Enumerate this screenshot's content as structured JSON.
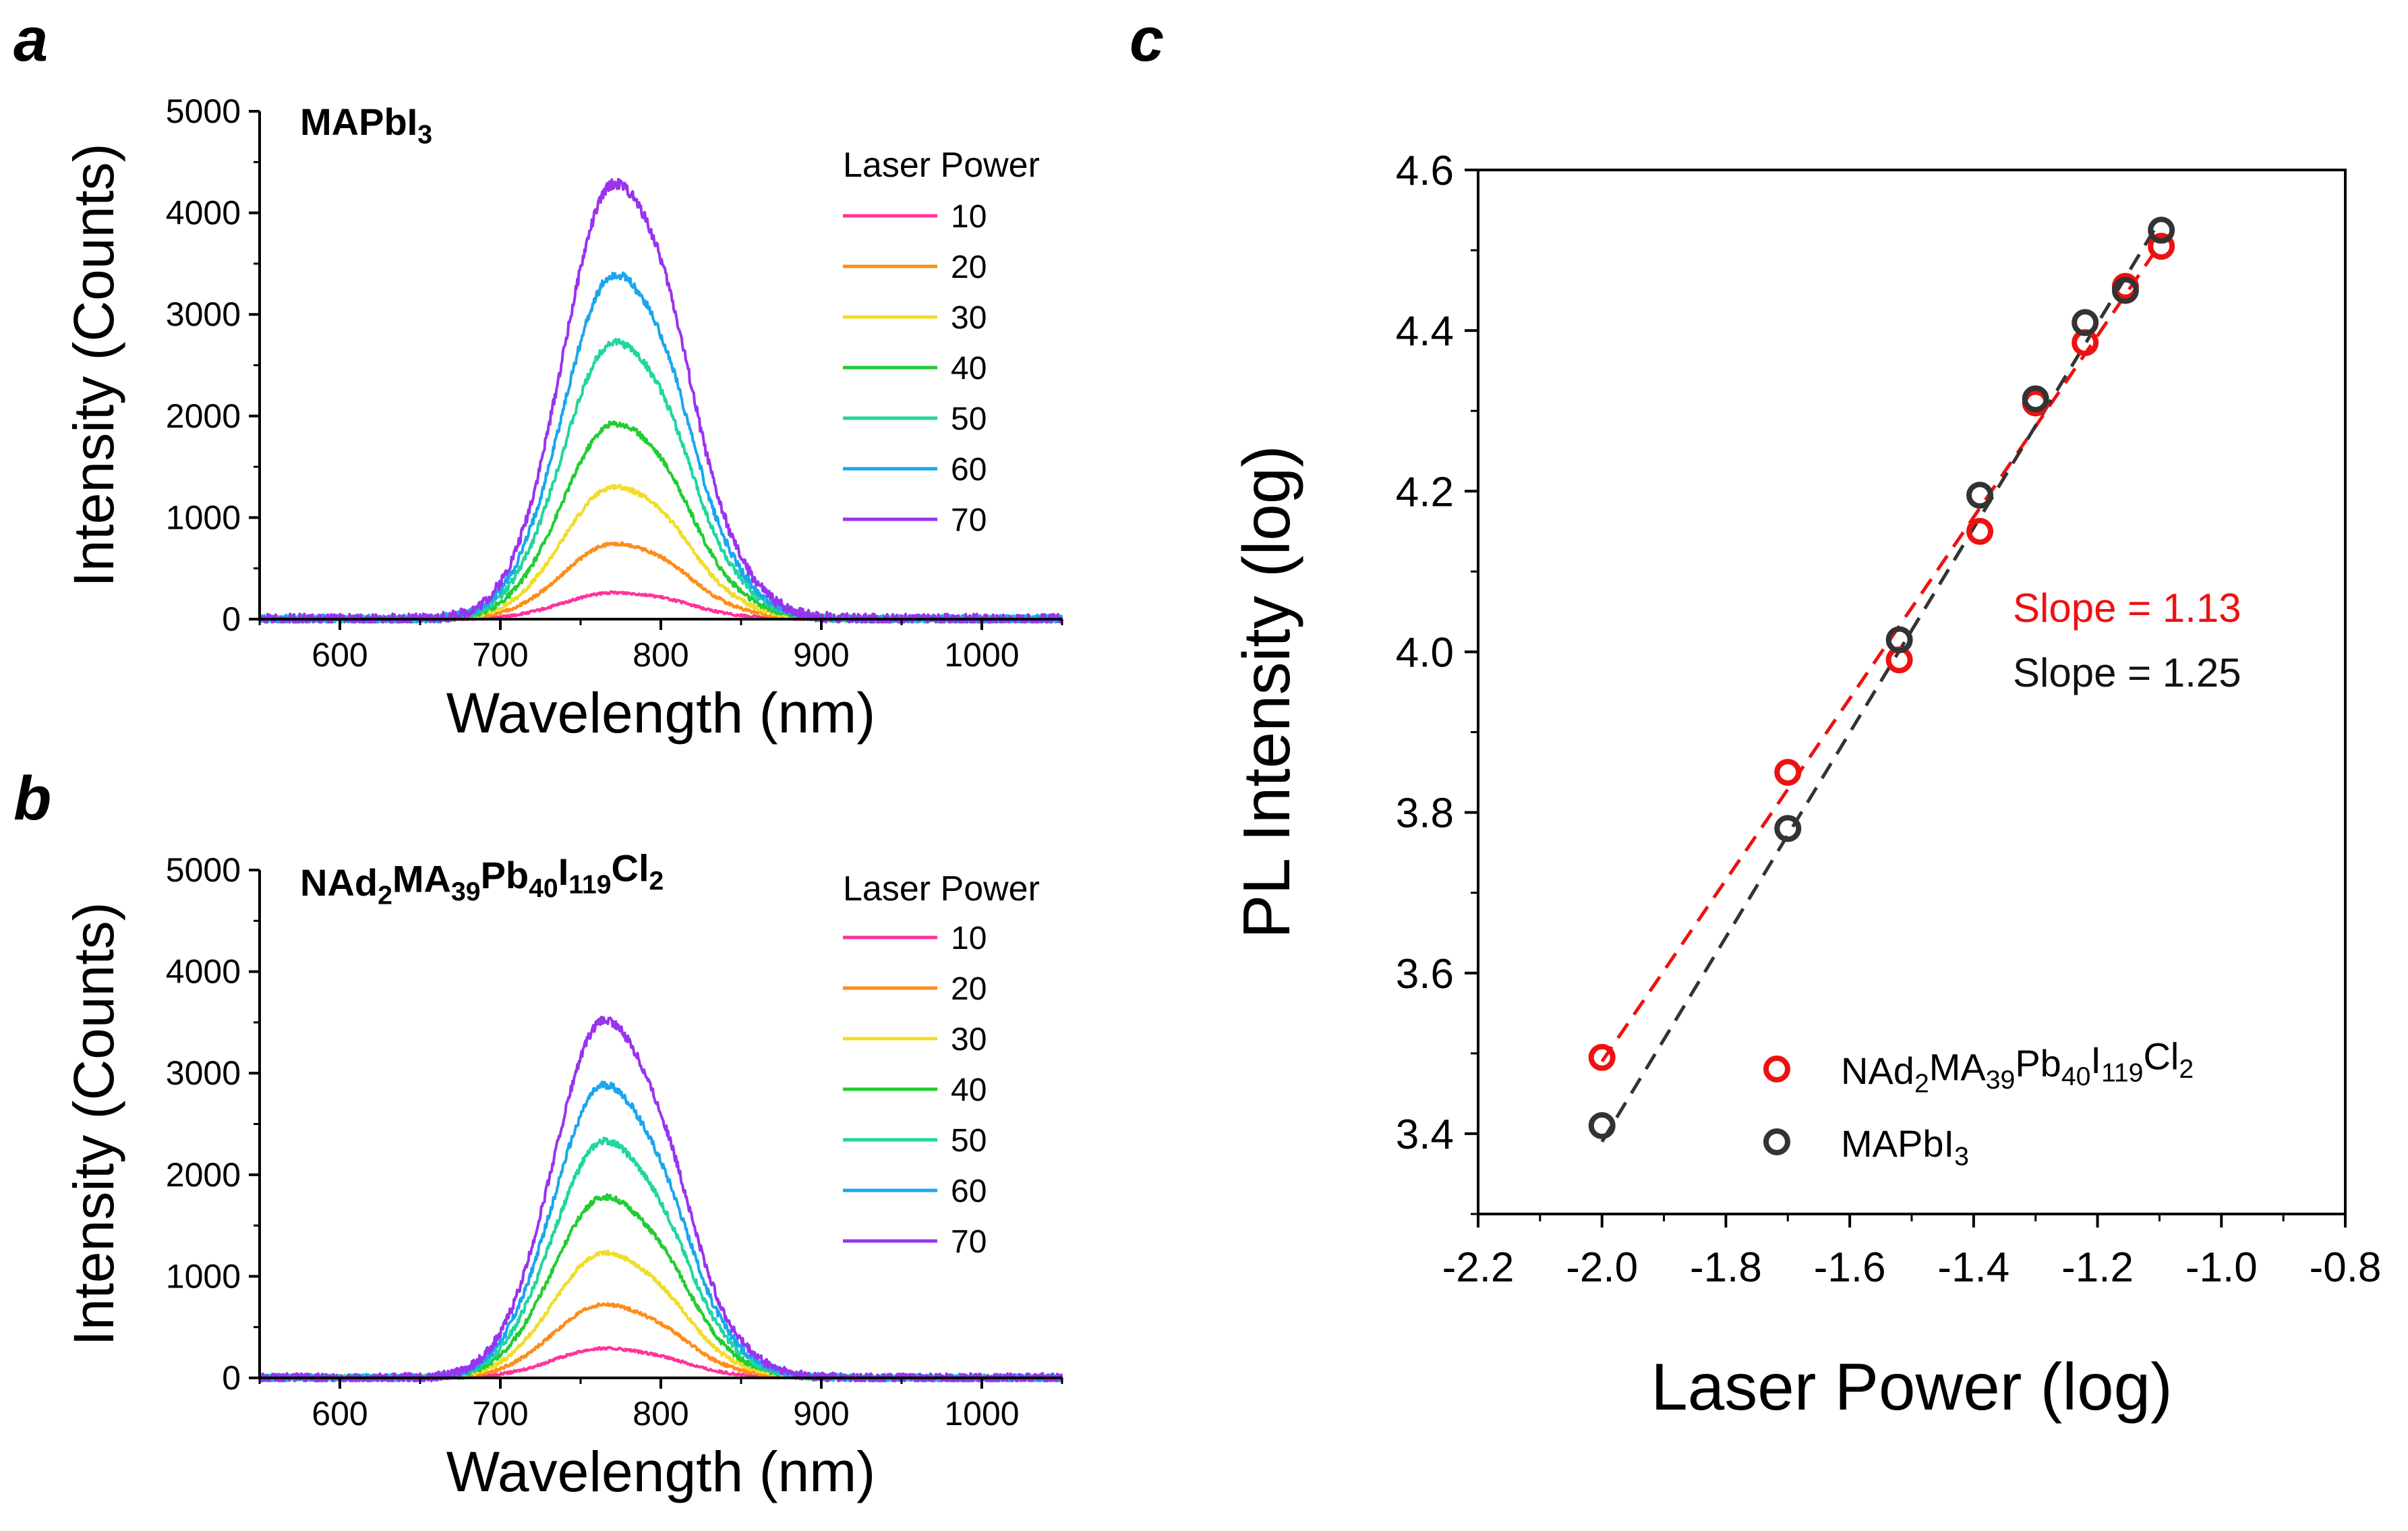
{
  "chart_data": [
    {
      "id": "a",
      "panel_label": "a",
      "type": "line",
      "title_parts": [
        {
          "t": "MAPbI"
        },
        {
          "t": "3",
          "s": "sub"
        }
      ],
      "xlabel": "Wavelength (nm)",
      "ylabel": "Intensity (Counts)",
      "xlim": [
        550,
        1050
      ],
      "ylim": [
        0,
        5000
      ],
      "xticks": [
        600,
        700,
        800,
        900,
        1000
      ],
      "yticks": [
        0,
        1000,
        2000,
        3000,
        4000,
        5000
      ],
      "legend_title": "Laser Power",
      "peak_center_nm": 771,
      "series": [
        {
          "name": "10",
          "peak": 260,
          "color": "#ff3399"
        },
        {
          "name": "20",
          "peak": 740,
          "color": "#ff8c1a"
        },
        {
          "name": "30",
          "peak": 1300,
          "color": "#f2dc2a"
        },
        {
          "name": "40",
          "peak": 1920,
          "color": "#22cc33"
        },
        {
          "name": "50",
          "peak": 2720,
          "color": "#1fd6a0"
        },
        {
          "name": "60",
          "peak": 3380,
          "color": "#1aa6ee"
        },
        {
          "name": "70",
          "peak": 4280,
          "color": "#9933ee"
        }
      ]
    },
    {
      "id": "b",
      "panel_label": "b",
      "type": "line",
      "title_parts": [
        {
          "t": "NAd"
        },
        {
          "t": "2",
          "s": "sub"
        },
        {
          "t": "MA"
        },
        {
          "t": "39",
          "s": "sub"
        },
        {
          "t": "Pb"
        },
        {
          "t": "40",
          "s": "sub"
        },
        {
          "t": "I"
        },
        {
          "t": "119",
          "s": "sub"
        },
        {
          "t": "Cl"
        },
        {
          "t": "2",
          "s": "sub"
        }
      ],
      "xlabel": "Wavelength (nm)",
      "ylabel": "Intensity (Counts)",
      "xlim": [
        550,
        1050
      ],
      "ylim": [
        0,
        5000
      ],
      "xticks": [
        600,
        700,
        800,
        900,
        1000
      ],
      "yticks": [
        0,
        1000,
        2000,
        3000,
        4000,
        5000
      ],
      "legend_title": "Laser Power",
      "peak_center_nm": 765,
      "series": [
        {
          "name": "10",
          "peak": 290,
          "color": "#ff3399"
        },
        {
          "name": "20",
          "peak": 720,
          "color": "#ff8c1a"
        },
        {
          "name": "30",
          "peak": 1230,
          "color": "#f2dc2a"
        },
        {
          "name": "40",
          "peak": 1780,
          "color": "#22cc33"
        },
        {
          "name": "50",
          "peak": 2330,
          "color": "#1fd6a0"
        },
        {
          "name": "60",
          "peak": 2880,
          "color": "#1aa6ee"
        },
        {
          "name": "70",
          "peak": 3520,
          "color": "#9933ee"
        }
      ]
    },
    {
      "id": "c",
      "panel_label": "c",
      "type": "scatter",
      "xlabel": "Laser Power (log)",
      "ylabel": "PL Intensity (log)",
      "xlim": [
        -2.2,
        -0.8
      ],
      "ylim": [
        3.3,
        4.6
      ],
      "xticks": [
        -2.2,
        -2.0,
        -1.8,
        -1.6,
        -1.4,
        -1.2,
        -1.0,
        -0.8
      ],
      "xtick_labels": [
        "-2.2",
        "-2.0",
        "-1.8",
        "-1.6",
        "-1.4",
        "-1.2",
        "-1.0",
        "-0.8"
      ],
      "yticks": [
        3.4,
        3.6,
        3.8,
        4.0,
        4.2,
        4.4,
        4.6
      ],
      "ytick_labels": [
        "3.4",
        "3.6",
        "3.8",
        "4.0",
        "4.2",
        "4.4",
        "4.6"
      ],
      "series": [
        {
          "name_parts": [
            {
              "t": "NAd"
            },
            {
              "t": "2",
              "s": "sub"
            },
            {
              "t": "MA"
            },
            {
              "t": "39",
              "s": "sub"
            },
            {
              "t": "Pb"
            },
            {
              "t": "40",
              "s": "sub"
            },
            {
              "t": "I"
            },
            {
              "t": "119",
              "s": "sub"
            },
            {
              "t": "Cl"
            },
            {
              "t": "2",
              "s": "sub"
            }
          ],
          "color": "#ee1111",
          "x": [
            -2.0,
            -1.7,
            -1.52,
            -1.39,
            -1.3,
            -1.22,
            -1.155,
            -1.097
          ],
          "y": [
            3.495,
            3.85,
            3.99,
            4.15,
            4.31,
            4.385,
            4.455,
            4.505
          ],
          "fit": {
            "x": [
              -2.0,
              -1.097
            ],
            "y": [
              3.49,
              4.51
            ]
          },
          "slope_label": "Slope = 1.13"
        },
        {
          "name_parts": [
            {
              "t": "MAPbI"
            },
            {
              "t": "3",
              "s": "sub"
            }
          ],
          "color": "#333333",
          "x": [
            -2.0,
            -1.7,
            -1.52,
            -1.39,
            -1.3,
            -1.22,
            -1.155,
            -1.097
          ],
          "y": [
            3.41,
            3.78,
            4.015,
            4.195,
            4.315,
            4.41,
            4.45,
            4.525
          ],
          "fit": {
            "x": [
              -2.0,
              -1.097
            ],
            "y": [
              3.39,
              4.54
            ]
          },
          "slope_label": "Slope = 1.25"
        }
      ]
    }
  ]
}
